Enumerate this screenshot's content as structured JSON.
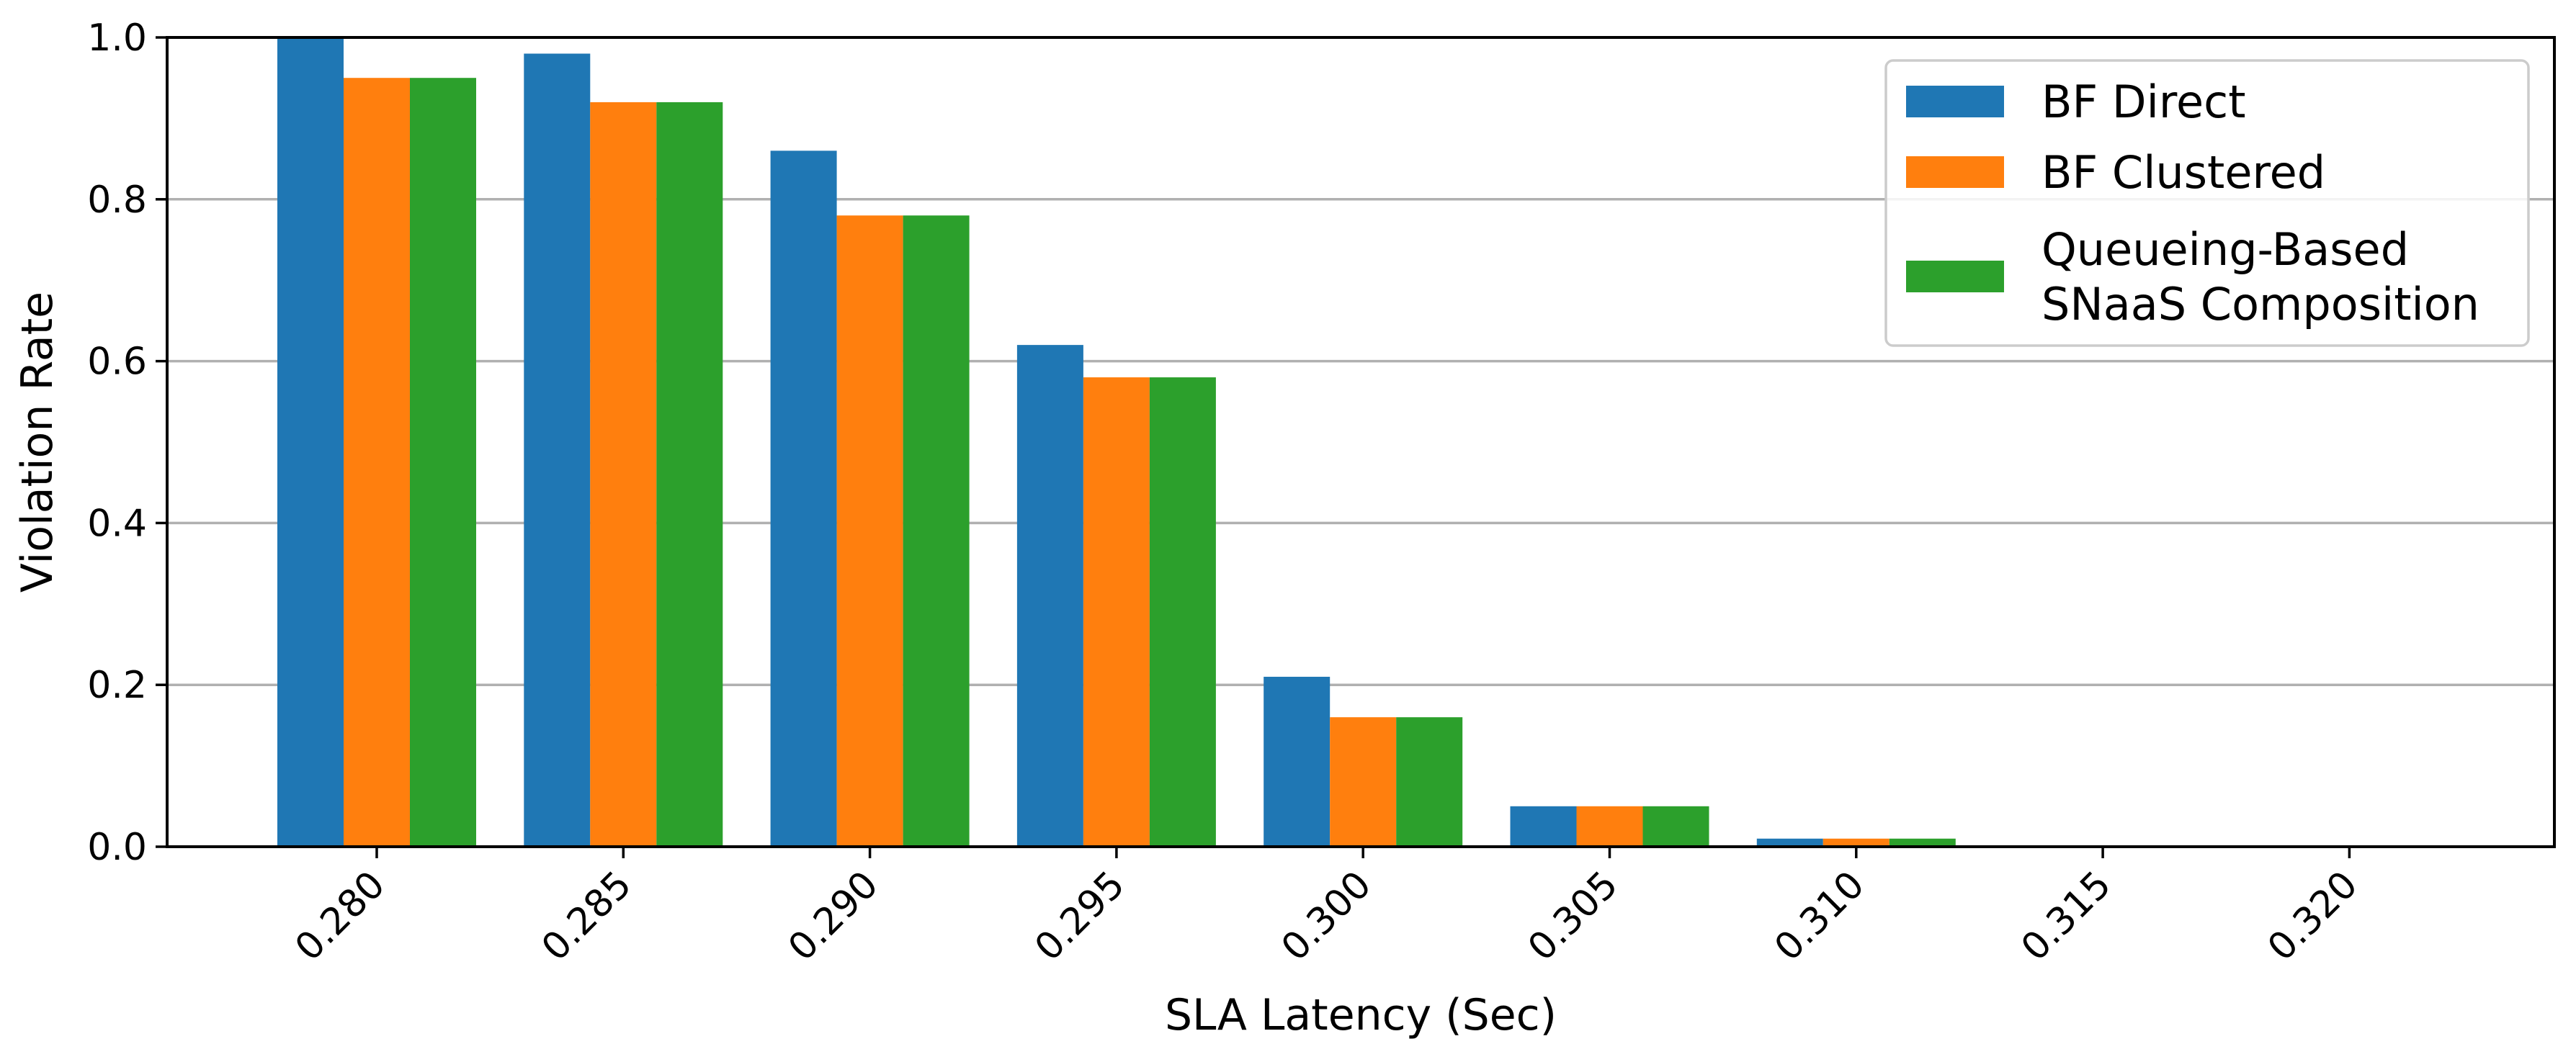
{
  "chart_data": {
    "type": "bar",
    "title": "",
    "xlabel": "SLA Latency (Sec)",
    "ylabel": "Violation Rate",
    "categories": [
      "0.280",
      "0.285",
      "0.290",
      "0.295",
      "0.300",
      "0.305",
      "0.310",
      "0.315",
      "0.320"
    ],
    "series": [
      {
        "name": "BF Direct",
        "color": "#1f77b4",
        "values": [
          1.0,
          0.98,
          0.86,
          0.62,
          0.21,
          0.05,
          0.01,
          0.0,
          0.0
        ]
      },
      {
        "name": "BF Clustered",
        "color": "#ff7f0e",
        "values": [
          0.95,
          0.92,
          0.78,
          0.58,
          0.16,
          0.05,
          0.01,
          0.0,
          0.0
        ]
      },
      {
        "name": "Queueing-Based SNaaS Composition",
        "legend_lines": [
          "Queueing-Based",
          "SNaaS Composition"
        ],
        "color": "#2ca02c",
        "values": [
          0.95,
          0.92,
          0.78,
          0.58,
          0.16,
          0.05,
          0.01,
          0.0,
          0.0
        ]
      }
    ],
    "ylim": [
      0,
      1.0
    ],
    "yticks": [
      "0.0",
      "0.2",
      "0.4",
      "0.6",
      "0.8",
      "1.0"
    ],
    "ytick_values": [
      0,
      0.2,
      0.4,
      0.6,
      0.8,
      1.0
    ],
    "grid": "horizontal",
    "legend_position": "top-right",
    "xtick_rotation_deg": 45
  }
}
